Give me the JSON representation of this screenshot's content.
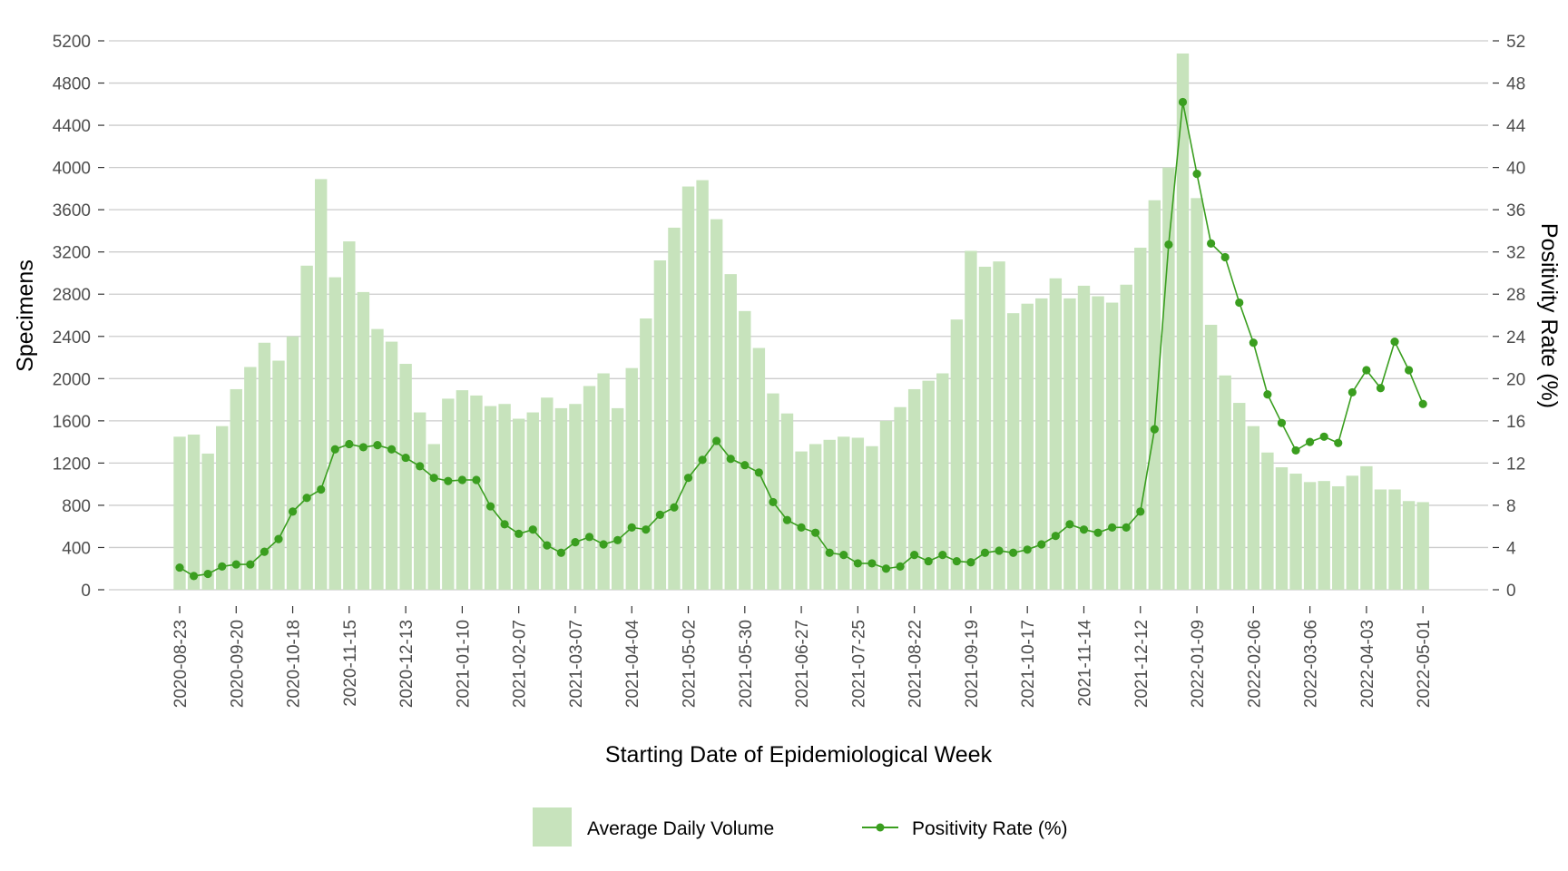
{
  "chart_data": {
    "type": "bar+line",
    "title": "",
    "xlabel": "Starting Date of Epidemiological Week",
    "ylabel_left": "Specimens",
    "ylabel_right": "Positivity Rate (%)",
    "ylim_left": [
      0,
      5200
    ],
    "ylim_right": [
      0,
      52
    ],
    "yticks_left": [
      0,
      400,
      800,
      1200,
      1600,
      2000,
      2400,
      2800,
      3200,
      3600,
      4000,
      4400,
      4800,
      5200
    ],
    "yticks_right": [
      0,
      4,
      8,
      12,
      16,
      20,
      24,
      28,
      32,
      36,
      40,
      44,
      48,
      52
    ],
    "xtick_labels": [
      "2020-08-23",
      "2020-09-20",
      "2020-10-18",
      "2020-11-15",
      "2020-12-13",
      "2021-01-10",
      "2021-02-07",
      "2021-03-07",
      "2021-04-04",
      "2021-05-02",
      "2021-05-30",
      "2021-06-27",
      "2021-07-25",
      "2021-08-22",
      "2021-09-19",
      "2021-10-17",
      "2021-11-14",
      "2021-12-12",
      "2022-01-09",
      "2022-02-06",
      "2022-03-06",
      "2022-04-03",
      "2022-05-01"
    ],
    "grid": true,
    "legend_position": "bottom",
    "bar_color": "#c7e3bc",
    "line_color": "#3a9e1f",
    "series": [
      {
        "name": "Average Daily Volume",
        "type": "bar",
        "axis": "left",
        "values": [
          1450,
          1470,
          1290,
          1550,
          1900,
          2110,
          2340,
          2170,
          2400,
          3070,
          3890,
          2960,
          3300,
          2820,
          2470,
          2350,
          2140,
          1680,
          1380,
          1810,
          1890,
          1840,
          1740,
          1760,
          1620,
          1680,
          1820,
          1720,
          1760,
          1930,
          2050,
          1720,
          2100,
          2570,
          3120,
          3430,
          3820,
          3880,
          3510,
          2990,
          2640,
          2290,
          1860,
          1670,
          1310,
          1380,
          1420,
          1450,
          1440,
          1360,
          1600,
          1730,
          1900,
          1980,
          2050,
          2560,
          3210,
          3060,
          3110,
          2620,
          2710,
          2760,
          2950,
          2760,
          2880,
          2780,
          2720,
          2890,
          3240,
          3690,
          4000,
          5080,
          3710,
          2510,
          2030,
          1770,
          1550,
          1300,
          1160,
          1100,
          1020,
          1030,
          980,
          1080,
          1170,
          950,
          950,
          840,
          830
        ]
      },
      {
        "name": "Positivity Rate (%)",
        "type": "line",
        "axis": "right",
        "values": [
          2.1,
          1.3,
          1.5,
          2.2,
          2.4,
          2.4,
          3.6,
          4.8,
          7.4,
          8.7,
          9.5,
          13.3,
          13.8,
          13.5,
          13.7,
          13.3,
          12.5,
          11.7,
          10.6,
          10.3,
          10.4,
          10.4,
          7.9,
          6.2,
          5.3,
          5.7,
          4.2,
          3.5,
          4.5,
          5.0,
          4.3,
          4.7,
          5.9,
          5.7,
          7.1,
          7.8,
          10.6,
          12.3,
          14.1,
          12.4,
          11.8,
          11.1,
          8.3,
          6.6,
          5.9,
          5.4,
          3.5,
          3.3,
          2.5,
          2.5,
          2.0,
          2.2,
          3.3,
          2.7,
          3.3,
          2.7,
          2.6,
          3.5,
          3.7,
          3.5,
          3.8,
          4.3,
          5.1,
          6.2,
          5.7,
          5.4,
          5.9,
          5.9,
          7.4,
          15.2,
          32.7,
          46.2,
          39.4,
          32.8,
          31.5,
          27.2,
          23.4,
          18.5,
          15.8,
          13.2,
          14.0,
          14.5,
          13.9,
          18.7,
          20.8,
          19.1,
          23.5,
          20.8,
          17.6
        ]
      }
    ]
  }
}
